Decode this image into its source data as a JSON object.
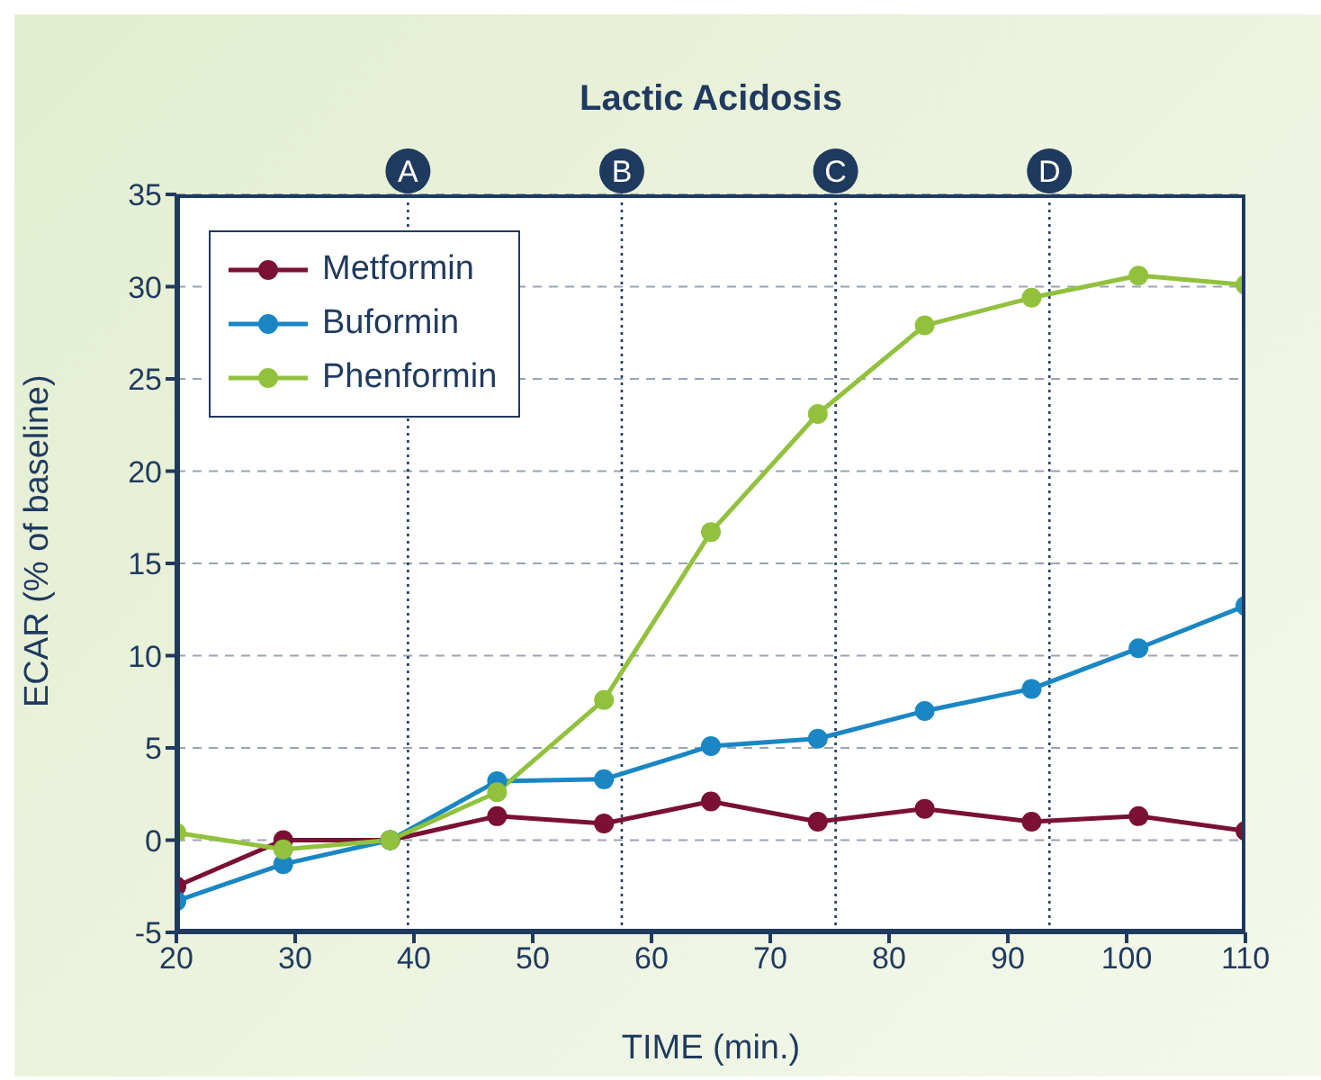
{
  "chart_data": {
    "type": "line",
    "title": "Lactic Acidosis",
    "xlabel": "TIME (min.)",
    "ylabel": "ECAR (% of baseline)",
    "x": [
      20,
      29,
      38,
      47,
      56,
      65,
      74,
      83,
      92,
      101,
      110
    ],
    "series": [
      {
        "name": "Metformin",
        "color": "#7a1034",
        "values": [
          -2.5,
          0,
          0,
          1.3,
          0.9,
          2.1,
          1.0,
          1.7,
          1.0,
          1.3,
          0.5
        ]
      },
      {
        "name": "Buformin",
        "color": "#1a87c4",
        "values": [
          -3.3,
          -1.3,
          0,
          3.2,
          3.3,
          5.1,
          5.5,
          7.0,
          8.2,
          10.4,
          12.7
        ]
      },
      {
        "name": "Phenformin",
        "color": "#92c13e",
        "values": [
          0.4,
          -0.5,
          0,
          2.6,
          7.6,
          16.7,
          23.1,
          27.9,
          29.4,
          30.6,
          30.1
        ]
      }
    ],
    "xlim": [
      20,
      110
    ],
    "xticks": [
      20,
      30,
      40,
      50,
      60,
      70,
      80,
      90,
      100,
      110
    ],
    "ylim": [
      -5,
      35
    ],
    "yticks": [
      -5,
      0,
      5,
      10,
      15,
      20,
      25,
      30,
      35
    ],
    "ref_lines": [
      {
        "axis": "x",
        "value": 39.5,
        "label": "A",
        "color": "#1f3a5f",
        "line_style": "dotted"
      },
      {
        "axis": "x",
        "value": 57.5,
        "label": "B",
        "color": "#1f3a5f",
        "line_style": "dotted"
      },
      {
        "axis": "x",
        "value": 75.5,
        "label": "C",
        "color": "#1f3a5f",
        "line_style": "dotted"
      },
      {
        "axis": "x",
        "value": 93.5,
        "label": "D",
        "color": "#1f3a5f",
        "line_style": "dotted"
      }
    ],
    "grid": "y",
    "legend": "top left",
    "marker": "circle",
    "line_style": "solid"
  }
}
